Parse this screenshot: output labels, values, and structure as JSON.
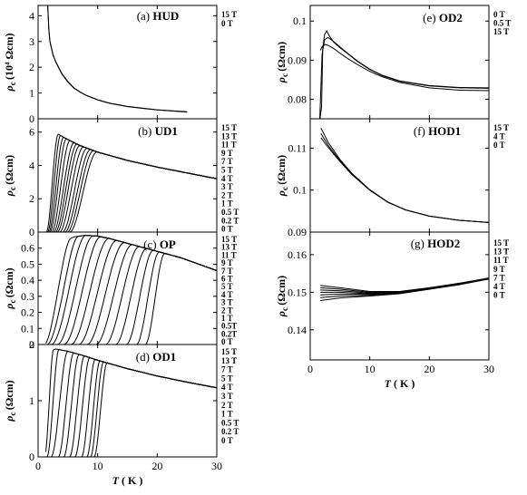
{
  "chart_data": [
    {
      "id": "HUD",
      "type": "line",
      "column": "left",
      "label": "(a)",
      "sample": "HUD",
      "ylabel": "ρ",
      "ylabel_sub": "c",
      "ylabel_unit": "(10⁴ Ωcm)",
      "xlim": [
        0,
        30
      ],
      "ylim": [
        0,
        4.4
      ],
      "yticks": [
        0,
        1,
        2,
        3,
        4
      ],
      "field_labels": [
        "15 T",
        "0 T"
      ],
      "series": [
        {
          "name": "15 T",
          "x": [
            1.6,
            1.8,
            2,
            2.5,
            3,
            4,
            5,
            6,
            7,
            8,
            10,
            12,
            15,
            18,
            20,
            25
          ],
          "y": [
            4.5,
            3.5,
            3.0,
            2.5,
            2.2,
            1.75,
            1.45,
            1.2,
            1.05,
            0.92,
            0.74,
            0.61,
            0.48,
            0.4,
            0.35,
            0.27
          ]
        },
        {
          "name": "0 T",
          "x": [
            1.6,
            1.8,
            2,
            2.5,
            3,
            4,
            5,
            6,
            7,
            8,
            10,
            12,
            15,
            18,
            20,
            25
          ],
          "y": [
            4.45,
            3.45,
            2.98,
            2.47,
            2.18,
            1.73,
            1.43,
            1.19,
            1.04,
            0.91,
            0.73,
            0.6,
            0.47,
            0.39,
            0.34,
            0.26
          ]
        }
      ]
    },
    {
      "id": "UD1",
      "type": "line",
      "column": "left",
      "label": "(b)",
      "sample": "UD1",
      "ylabel": "ρ",
      "ylabel_sub": "c",
      "ylabel_unit": "(Ωcm)",
      "xlim": [
        0,
        30
      ],
      "ylim": [
        0,
        6.8
      ],
      "yticks": [
        0,
        2,
        4,
        6
      ],
      "field_labels": [
        "15 T",
        "13 T",
        "11 T",
        "9 T",
        "7 T",
        "5 T",
        "4 T",
        "3 T",
        "2 T",
        "1 T",
        "0.5 T",
        "0.2 T",
        "0 T"
      ],
      "background": {
        "x": [
          1.5,
          3,
          5,
          7,
          10,
          15,
          20,
          25,
          30
        ],
        "y": [
          6.3,
          5.95,
          5.55,
          5.2,
          4.8,
          4.3,
          3.9,
          3.55,
          3.2
        ]
      },
      "transitions": [
        {
          "name": "15 T",
          "T0": 1.4,
          "T1": 3.4
        },
        {
          "name": "13 T",
          "T0": 1.6,
          "T1": 3.8
        },
        {
          "name": "11 T",
          "T0": 1.8,
          "T1": 4.3
        },
        {
          "name": "9 T",
          "T0": 2.0,
          "T1": 4.8
        },
        {
          "name": "7 T",
          "T0": 2.3,
          "T1": 5.4
        },
        {
          "name": "5 T",
          "T0": 2.6,
          "T1": 6.1
        },
        {
          "name": "4 T",
          "T0": 2.9,
          "T1": 6.6
        },
        {
          "name": "3 T",
          "T0": 3.2,
          "T1": 7.1
        },
        {
          "name": "2 T",
          "T0": 3.6,
          "T1": 7.7
        },
        {
          "name": "1 T",
          "T0": 4.1,
          "T1": 8.3
        },
        {
          "name": "0.5 T",
          "T0": 4.5,
          "T1": 8.9
        },
        {
          "name": "0.2 T",
          "T0": 4.9,
          "T1": 9.4
        },
        {
          "name": "0 T",
          "T0": 5.3,
          "T1": 10.0
        }
      ]
    },
    {
      "id": "OP",
      "type": "line",
      "column": "left",
      "label": "(c)",
      "sample": "OP",
      "ylabel": "ρ",
      "ylabel_sub": "c",
      "ylabel_unit": "(Ωcm)",
      "xlim": [
        0,
        30
      ],
      "ylim": [
        0,
        0.7
      ],
      "yticks": [
        0.0,
        0.1,
        0.2,
        0.3,
        0.4,
        0.5,
        0.6
      ],
      "field_labels": [
        "15 T",
        "13 T",
        "11 T",
        "9 T",
        "7 T",
        "6 T",
        "5 T",
        "4 T",
        "3 T",
        "2 T",
        "1 T",
        "0.5T",
        "0.2T",
        "0 T"
      ],
      "background": {
        "x": [
          4,
          6,
          8,
          10,
          12,
          15,
          18,
          21,
          24,
          27,
          30
        ],
        "y": [
          0.635,
          0.67,
          0.68,
          0.675,
          0.66,
          0.63,
          0.6,
          0.57,
          0.54,
          0.5,
          0.46
        ]
      },
      "transitions": [
        {
          "name": "15 T",
          "T0": 1.0,
          "T1": 5.5
        },
        {
          "name": "13 T",
          "T0": 1.5,
          "T1": 6.8
        },
        {
          "name": "11 T",
          "T0": 2.2,
          "T1": 8.0
        },
        {
          "name": "9 T",
          "T0": 3.2,
          "T1": 9.3
        },
        {
          "name": "7 T",
          "T0": 4.3,
          "T1": 10.6
        },
        {
          "name": "6 T",
          "T0": 5.5,
          "T1": 12.0
        },
        {
          "name": "5 T",
          "T0": 6.8,
          "T1": 13.3
        },
        {
          "name": "4 T",
          "T0": 8.2,
          "T1": 14.6
        },
        {
          "name": "3 T",
          "T0": 9.7,
          "T1": 15.9
        },
        {
          "name": "2 T",
          "T0": 11.3,
          "T1": 17.1
        },
        {
          "name": "1 T",
          "T0": 13.0,
          "T1": 18.3
        },
        {
          "name": "0.5T",
          "T0": 14.8,
          "T1": 19.4
        },
        {
          "name": "0.2T",
          "T0": 16.5,
          "T1": 20.4
        },
        {
          "name": "0 T",
          "T0": 18.0,
          "T1": 21.3
        }
      ]
    },
    {
      "id": "OD1",
      "type": "line",
      "column": "left",
      "label": "(d)",
      "sample": "OD1",
      "ylabel": "ρ",
      "ylabel_sub": "c",
      "ylabel_unit": "(Ωcm)",
      "xlim": [
        0,
        30
      ],
      "ylim": [
        0,
        2.0
      ],
      "yticks": [
        0,
        1,
        2
      ],
      "field_labels": [
        "15 T",
        "13 T",
        "7 T",
        "5 T",
        "4 T",
        "3 T",
        "2 T",
        "1 T",
        "0.5 T",
        "0.2 T",
        "0 T"
      ],
      "background": {
        "x": [
          2,
          3,
          5,
          8,
          10,
          15,
          20,
          25,
          30
        ],
        "y": [
          1.9,
          1.92,
          1.88,
          1.79,
          1.72,
          1.57,
          1.44,
          1.33,
          1.23
        ]
      },
      "transitions": [
        {
          "name": "15 T",
          "T0": 1.1,
          "T1": 2.6
        },
        {
          "name": "13 T",
          "T0": 1.5,
          "T1": 3.5
        },
        {
          "name": "7 T",
          "T0": 2.2,
          "T1": 5.0
        },
        {
          "name": "5 T",
          "T0": 3.4,
          "T1": 6.0
        },
        {
          "name": "4 T",
          "T0": 4.3,
          "T1": 6.9
        },
        {
          "name": "3 T",
          "T0": 5.3,
          "T1": 7.8
        },
        {
          "name": "2 T",
          "T0": 6.2,
          "T1": 8.7
        },
        {
          "name": "1 T",
          "T0": 7.3,
          "T1": 9.6
        },
        {
          "name": "0.5 T",
          "T0": 8.2,
          "T1": 10.4
        },
        {
          "name": "0.2 T",
          "T0": 8.8,
          "T1": 11.0
        },
        {
          "name": "0 T",
          "T0": 9.4,
          "T1": 11.6
        }
      ]
    },
    {
      "id": "OD2",
      "type": "line",
      "column": "right",
      "label": "(e)",
      "sample": "OD2",
      "ylabel": "ρ",
      "ylabel_sub": "c",
      "ylabel_unit": "(Ωcm)",
      "xlim": [
        0,
        30
      ],
      "ylim": [
        0.075,
        0.104
      ],
      "yticks": [
        0.08,
        0.09,
        0.1
      ],
      "field_labels": [
        "0 T",
        "0.5 T",
        "15 T"
      ],
      "series": [
        {
          "name": "0 T",
          "x": [
            1.6,
            1.9,
            2.1,
            2.4,
            2.8,
            3.2,
            4,
            5,
            6,
            8,
            10,
            12,
            15,
            20,
            25,
            30
          ],
          "y": [
            0.0745,
            0.078,
            0.093,
            0.0965,
            0.0975,
            0.0962,
            0.0945,
            0.0932,
            0.092,
            0.0896,
            0.0876,
            0.0861,
            0.0846,
            0.0834,
            0.0829,
            0.0828
          ]
        },
        {
          "name": "0.5 T",
          "x": [
            1.6,
            2.0,
            2.4,
            3,
            4,
            5,
            6,
            8,
            10,
            12,
            15,
            20,
            25,
            30
          ],
          "y": [
            0.0748,
            0.0915,
            0.0952,
            0.0958,
            0.0947,
            0.0934,
            0.0921,
            0.0897,
            0.0877,
            0.0862,
            0.0847,
            0.0835,
            0.083,
            0.0829
          ]
        },
        {
          "name": "15 T",
          "x": [
            1.7,
            2,
            2.5,
            3,
            4,
            5,
            6,
            8,
            10,
            12,
            15,
            20,
            25,
            30
          ],
          "y": [
            0.0925,
            0.0935,
            0.094,
            0.0938,
            0.0929,
            0.0918,
            0.0907,
            0.0888,
            0.0871,
            0.0858,
            0.0843,
            0.0829,
            0.0823,
            0.0822
          ]
        }
      ]
    },
    {
      "id": "HOD1",
      "type": "line",
      "column": "right",
      "label": "(f)",
      "sample": "HOD1",
      "ylabel": "ρ",
      "ylabel_sub": "c",
      "ylabel_unit": "(Ωcm)",
      "xlim": [
        0,
        30
      ],
      "ylim": [
        0.09,
        0.117
      ],
      "yticks": [
        0.09,
        0.1,
        0.11
      ],
      "field_labels": [
        "15 T",
        "4 T",
        "0 T"
      ],
      "series": [
        {
          "name": "15 T",
          "x": [
            1.8,
            3,
            5,
            7,
            10,
            13,
            16,
            20,
            25,
            30
          ],
          "y": [
            0.1125,
            0.1102,
            0.1068,
            0.1037,
            0.1,
            0.0971,
            0.0953,
            0.0938,
            0.0928,
            0.0923
          ]
        },
        {
          "name": "4 T",
          "x": [
            1.8,
            3,
            5,
            7,
            10,
            13,
            16,
            20,
            25,
            30
          ],
          "y": [
            0.1135,
            0.1107,
            0.107,
            0.1038,
            0.1,
            0.0971,
            0.0953,
            0.0938,
            0.0928,
            0.0923
          ]
        },
        {
          "name": "0 T",
          "x": [
            1.8,
            3,
            5,
            7,
            10,
            13,
            16,
            20,
            25,
            30
          ],
          "y": [
            0.1148,
            0.1114,
            0.1073,
            0.104,
            0.1001,
            0.0972,
            0.0953,
            0.0938,
            0.0928,
            0.0923
          ]
        }
      ]
    },
    {
      "id": "HOD2",
      "type": "line",
      "column": "right",
      "label": "(g)",
      "sample": "HOD2",
      "ylabel": "ρ",
      "ylabel_sub": "c",
      "ylabel_unit": "(Ωcm)",
      "xlim": [
        0,
        30
      ],
      "ylim": [
        0.132,
        0.166
      ],
      "yticks": [
        0.14,
        0.15,
        0.16
      ],
      "field_labels": [
        "15 T",
        "13 T",
        "11 T",
        "9 T",
        "7 T",
        "4 T",
        "0 T"
      ],
      "series": [
        {
          "name": "15 T",
          "x": [
            1.7,
            5,
            10,
            15,
            20,
            25,
            30
          ],
          "y": [
            0.1518,
            0.1512,
            0.1502,
            0.1502,
            0.1512,
            0.1524,
            0.1538
          ]
        },
        {
          "name": "13 T",
          "x": [
            1.7,
            5,
            10,
            15,
            20,
            25,
            30
          ],
          "y": [
            0.1512,
            0.1508,
            0.15,
            0.1501,
            0.1511,
            0.1523,
            0.1537
          ]
        },
        {
          "name": "11 T",
          "x": [
            1.7,
            5,
            10,
            15,
            20,
            25,
            30
          ],
          "y": [
            0.1506,
            0.1504,
            0.1498,
            0.15,
            0.151,
            0.1522,
            0.1537
          ]
        },
        {
          "name": "9 T",
          "x": [
            1.7,
            5,
            10,
            15,
            20,
            25,
            30
          ],
          "y": [
            0.15,
            0.15,
            0.1496,
            0.1499,
            0.1509,
            0.1522,
            0.1536
          ]
        },
        {
          "name": "7 T",
          "x": [
            1.7,
            5,
            10,
            15,
            20,
            25,
            30
          ],
          "y": [
            0.1493,
            0.1495,
            0.1494,
            0.1498,
            0.1509,
            0.1521,
            0.1536
          ]
        },
        {
          "name": "4 T",
          "x": [
            1.7,
            5,
            10,
            15,
            20,
            25,
            30
          ],
          "y": [
            0.1486,
            0.149,
            0.1492,
            0.1497,
            0.1508,
            0.1521,
            0.1535
          ]
        },
        {
          "name": "0 T",
          "x": [
            1.7,
            5,
            10,
            15,
            20,
            25,
            30
          ],
          "y": [
            0.1478,
            0.1485,
            0.149,
            0.1496,
            0.1508,
            0.152,
            0.1535
          ]
        }
      ]
    }
  ],
  "axes": {
    "left": {
      "xticks": [
        0,
        10,
        20,
        30
      ],
      "xlabel": "T",
      "xunit": "( K )"
    },
    "right": {
      "xticks": [
        0,
        10,
        20,
        30
      ],
      "xlabel": "T",
      "xunit": "( K )"
    }
  },
  "colors": {
    "line": "#000000",
    "axis": "#000000",
    "background": "#ffffff"
  }
}
